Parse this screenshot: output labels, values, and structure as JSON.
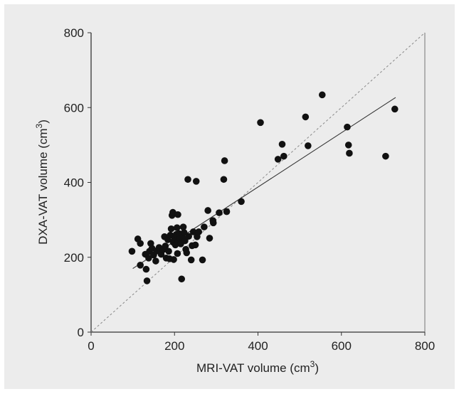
{
  "chart_data": {
    "type": "scatter",
    "title": "",
    "xlabel": "MRI-VAT volume (cm",
    "xlabel_sup": "3",
    "xlabel_close": ")",
    "ylabel": "DXA-VAT volume (cm",
    "ylabel_sup": "3",
    "ylabel_close": ")",
    "xlim": [
      0,
      800
    ],
    "ylim": [
      0,
      800
    ],
    "x_ticks": [
      0,
      200,
      400,
      600,
      800
    ],
    "y_ticks": [
      0,
      200,
      400,
      600,
      800
    ],
    "grid": false,
    "point_color": "#111111",
    "background_color": "#ececec",
    "identity_line": {
      "x": [
        0,
        800
      ],
      "y": [
        0,
        800
      ],
      "style": "dashed"
    },
    "regression_line": {
      "x": [
        100,
        730
      ],
      "y": [
        170,
        627
      ],
      "style": "solid"
    },
    "points": [
      {
        "x": 98,
        "y": 216
      },
      {
        "x": 112,
        "y": 249
      },
      {
        "x": 118,
        "y": 237
      },
      {
        "x": 118,
        "y": 179
      },
      {
        "x": 130,
        "y": 208
      },
      {
        "x": 132,
        "y": 168
      },
      {
        "x": 134,
        "y": 137
      },
      {
        "x": 138,
        "y": 198
      },
      {
        "x": 140,
        "y": 216
      },
      {
        "x": 143,
        "y": 237
      },
      {
        "x": 146,
        "y": 224
      },
      {
        "x": 150,
        "y": 206
      },
      {
        "x": 155,
        "y": 190
      },
      {
        "x": 157,
        "y": 217
      },
      {
        "x": 163,
        "y": 226
      },
      {
        "x": 168,
        "y": 208
      },
      {
        "x": 172,
        "y": 220
      },
      {
        "x": 176,
        "y": 255
      },
      {
        "x": 178,
        "y": 230
      },
      {
        "x": 180,
        "y": 198
      },
      {
        "x": 184,
        "y": 247
      },
      {
        "x": 186,
        "y": 216
      },
      {
        "x": 188,
        "y": 196
      },
      {
        "x": 190,
        "y": 259
      },
      {
        "x": 192,
        "y": 276
      },
      {
        "x": 194,
        "y": 312
      },
      {
        "x": 196,
        "y": 320
      },
      {
        "x": 197,
        "y": 240
      },
      {
        "x": 198,
        "y": 194
      },
      {
        "x": 200,
        "y": 248
      },
      {
        "x": 202,
        "y": 233
      },
      {
        "x": 204,
        "y": 261
      },
      {
        "x": 206,
        "y": 279
      },
      {
        "x": 207,
        "y": 210
      },
      {
        "x": 208,
        "y": 314
      },
      {
        "x": 209,
        "y": 242
      },
      {
        "x": 211,
        "y": 263
      },
      {
        "x": 213,
        "y": 250
      },
      {
        "x": 215,
        "y": 236
      },
      {
        "x": 217,
        "y": 142
      },
      {
        "x": 219,
        "y": 252
      },
      {
        "x": 221,
        "y": 281
      },
      {
        "x": 223,
        "y": 266
      },
      {
        "x": 225,
        "y": 244
      },
      {
        "x": 227,
        "y": 221
      },
      {
        "x": 229,
        "y": 212
      },
      {
        "x": 232,
        "y": 408
      },
      {
        "x": 234,
        "y": 256
      },
      {
        "x": 240,
        "y": 193
      },
      {
        "x": 242,
        "y": 231
      },
      {
        "x": 245,
        "y": 268
      },
      {
        "x": 250,
        "y": 233
      },
      {
        "x": 252,
        "y": 403
      },
      {
        "x": 254,
        "y": 255
      },
      {
        "x": 258,
        "y": 268
      },
      {
        "x": 267,
        "y": 193
      },
      {
        "x": 271,
        "y": 281
      },
      {
        "x": 280,
        "y": 325
      },
      {
        "x": 284,
        "y": 251
      },
      {
        "x": 292,
        "y": 298
      },
      {
        "x": 293,
        "y": 292
      },
      {
        "x": 307,
        "y": 319
      },
      {
        "x": 318,
        "y": 408
      },
      {
        "x": 320,
        "y": 458
      },
      {
        "x": 325,
        "y": 322
      },
      {
        "x": 360,
        "y": 349
      },
      {
        "x": 406,
        "y": 560
      },
      {
        "x": 448,
        "y": 462
      },
      {
        "x": 458,
        "y": 502
      },
      {
        "x": 462,
        "y": 470
      },
      {
        "x": 514,
        "y": 575
      },
      {
        "x": 520,
        "y": 498
      },
      {
        "x": 554,
        "y": 634
      },
      {
        "x": 614,
        "y": 548
      },
      {
        "x": 617,
        "y": 500
      },
      {
        "x": 619,
        "y": 478
      },
      {
        "x": 706,
        "y": 470
      },
      {
        "x": 728,
        "y": 596
      }
    ]
  }
}
